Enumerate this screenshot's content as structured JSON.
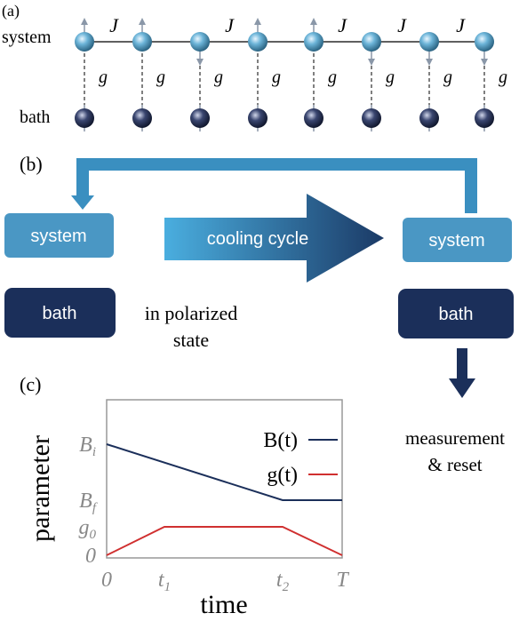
{
  "panel_a": {
    "label": "(a)",
    "system_label": "system",
    "bath_label": "bath",
    "coupling_J": [
      "J",
      "J",
      "J",
      "J",
      "J"
    ],
    "coupling_g": [
      "g",
      "g",
      "g",
      "g",
      "g",
      "g",
      "g",
      "g"
    ]
  },
  "panel_b": {
    "label": "(b)",
    "left_system": "system",
    "left_bath": "bath",
    "bath_note": [
      "in polarized",
      "state"
    ],
    "cycle": "cooling cycle",
    "right_system": "system",
    "right_bath": "bath",
    "outcome": [
      "measurement",
      "& reset"
    ]
  },
  "panel_c": {
    "label": "(c)",
    "y_label": "parameter",
    "x_label": "time",
    "xticks": [
      {
        "text": "0"
      },
      {
        "text": "t",
        "sub": "1"
      },
      {
        "text": "t",
        "sub": "2"
      },
      {
        "text": "T"
      }
    ],
    "yticks": [
      {
        "text": "0"
      },
      {
        "text": "g",
        "sub": "0"
      },
      {
        "text": "B",
        "sub": "f"
      },
      {
        "text": "B",
        "sub": "i"
      }
    ],
    "legend": [
      "B(t)",
      "g(t)"
    ]
  }
}
